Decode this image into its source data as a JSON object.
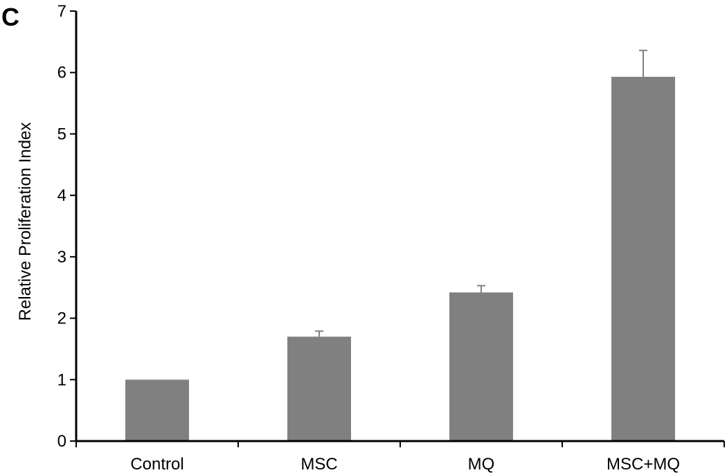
{
  "panel_label": "C",
  "chart_data": {
    "type": "bar",
    "title": "",
    "xlabel": "",
    "ylabel": "Relative Proliferation Index",
    "categories": [
      "Control",
      "MSC",
      "MQ",
      "MSC+MQ"
    ],
    "values": [
      1.0,
      1.7,
      2.42,
      5.93
    ],
    "errors": [
      0.0,
      0.09,
      0.11,
      0.43
    ],
    "ylim": [
      0,
      7
    ],
    "yticks": [
      "0",
      "1",
      "2",
      "3",
      "4",
      "5",
      "6",
      "7"
    ],
    "grid": false,
    "legend": "none",
    "colors": {
      "bar": "#808080",
      "axis": "#000000",
      "error_bar": "#808080"
    }
  }
}
